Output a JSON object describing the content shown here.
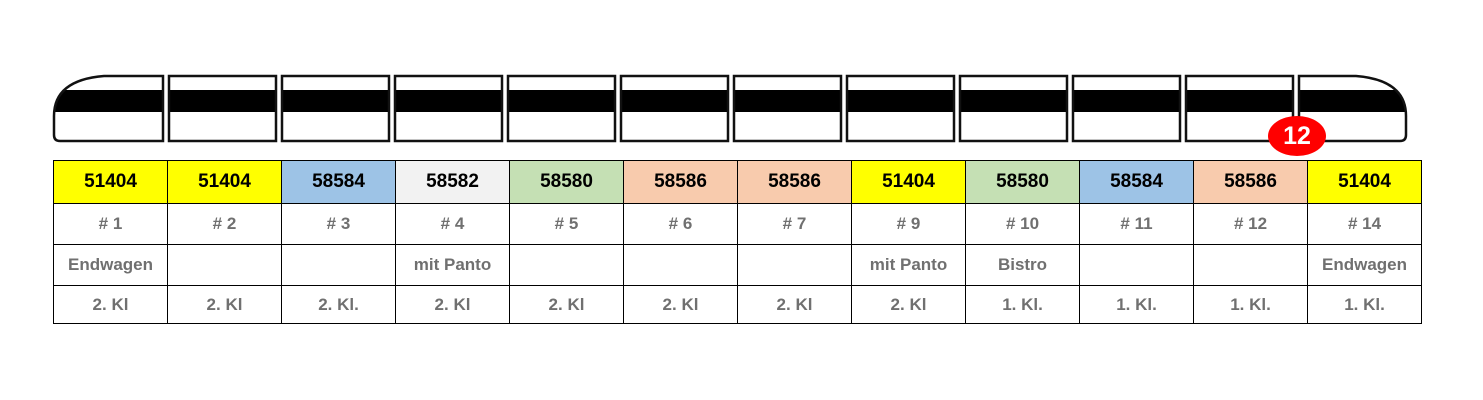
{
  "badge": {
    "label": "12",
    "color": "#ff0000"
  },
  "cars": [
    {
      "number": "51404",
      "color": "#ffff00",
      "position": "# 1",
      "note": "Endwagen",
      "class": "2. Kl"
    },
    {
      "number": "51404",
      "color": "#ffff00",
      "position": "# 2",
      "note": "",
      "class": "2. Kl"
    },
    {
      "number": "58584",
      "color": "#9dc3e6",
      "position": "# 3",
      "note": "",
      "class": "2. Kl."
    },
    {
      "number": "58582",
      "color": "#f2f2f2",
      "position": "# 4",
      "note": "mit Panto",
      "class": "2. Kl"
    },
    {
      "number": "58580",
      "color": "#c5e0b4",
      "position": "# 5",
      "note": "",
      "class": "2. Kl"
    },
    {
      "number": "58586",
      "color": "#f8cbad",
      "position": "# 6",
      "note": "",
      "class": "2. Kl"
    },
    {
      "number": "58586",
      "color": "#f8cbad",
      "position": "# 7",
      "note": "",
      "class": "2. Kl"
    },
    {
      "number": "51404",
      "color": "#ffff00",
      "position": "# 9",
      "note": "mit Panto",
      "class": "2. Kl"
    },
    {
      "number": "58580",
      "color": "#c5e0b4",
      "position": "# 10",
      "note": "Bistro",
      "class": "1. Kl."
    },
    {
      "number": "58584",
      "color": "#9dc3e6",
      "position": "# 11",
      "note": "",
      "class": "1. Kl."
    },
    {
      "number": "58586",
      "color": "#f8cbad",
      "position": "# 12",
      "note": "",
      "class": "1. Kl."
    },
    {
      "number": "51404",
      "color": "#ffff00",
      "position": "# 14",
      "note": "Endwagen",
      "class": "1. Kl."
    }
  ]
}
